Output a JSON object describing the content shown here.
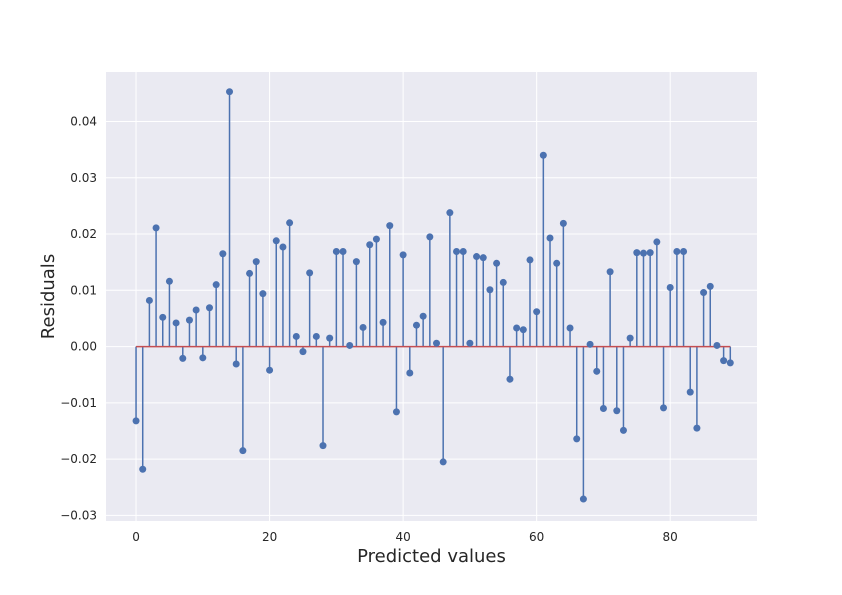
{
  "chart_data": {
    "type": "stem",
    "title": "",
    "xlabel": "Predicted values",
    "ylabel": "Residuals",
    "xlim": [
      -4.5,
      93
    ],
    "ylim": [
      -0.031,
      0.0488
    ],
    "xticks": [
      0,
      20,
      40,
      60,
      80
    ],
    "xtick_labels": [
      "0",
      "20",
      "40",
      "60",
      "80"
    ],
    "yticks": [
      -0.03,
      -0.02,
      -0.01,
      0.0,
      0.01,
      0.02,
      0.03,
      0.04
    ],
    "ytick_labels": [
      "−0.03",
      "−0.02",
      "−0.01",
      "0.00",
      "0.01",
      "0.02",
      "0.03",
      "0.04"
    ],
    "grid": true,
    "baseline": 0.0,
    "x": [
      0,
      1,
      2,
      3,
      4,
      5,
      6,
      7,
      8,
      9,
      10,
      11,
      12,
      13,
      14,
      15,
      16,
      17,
      18,
      19,
      20,
      21,
      22,
      23,
      24,
      25,
      26,
      27,
      28,
      29,
      30,
      31,
      32,
      33,
      34,
      35,
      36,
      37,
      38,
      39,
      40,
      41,
      42,
      43,
      44,
      45,
      46,
      47,
      48,
      49,
      50,
      51,
      52,
      53,
      54,
      55,
      56,
      57,
      58,
      59,
      60,
      61,
      62,
      63,
      64,
      65,
      66,
      67,
      68,
      69,
      70,
      71,
      72,
      73,
      74,
      75,
      76,
      77,
      78,
      79,
      80,
      81,
      82,
      83,
      84,
      85,
      86,
      87,
      88,
      89
    ],
    "values": [
      -0.0132,
      -0.0218,
      0.0082,
      0.0211,
      0.0052,
      0.0116,
      0.0042,
      -0.0021,
      0.0047,
      0.0065,
      -0.002,
      0.0069,
      0.011,
      0.0165,
      0.0453,
      -0.0031,
      -0.0185,
      0.013,
      0.0151,
      0.0094,
      -0.0042,
      0.0188,
      0.0177,
      0.022,
      0.0018,
      -0.0009,
      0.0131,
      0.0018,
      -0.0176,
      0.0015,
      0.0169,
      0.0169,
      0.0002,
      0.0151,
      0.0034,
      0.0181,
      0.0191,
      0.0043,
      0.0215,
      -0.0116,
      0.0163,
      -0.0047,
      0.0038,
      0.0054,
      0.0195,
      0.0006,
      -0.0205,
      0.0238,
      0.0169,
      0.0169,
      0.0006,
      0.016,
      0.0158,
      0.0101,
      0.0148,
      0.0114,
      -0.0058,
      0.0033,
      0.003,
      0.0154,
      0.0062,
      0.034,
      0.0193,
      0.0148,
      0.0219,
      0.0033,
      -0.0164,
      -0.0271,
      0.0004,
      -0.0044,
      -0.011,
      0.0133,
      -0.0114,
      -0.0149,
      0.0015,
      0.0167,
      0.0166,
      0.0167,
      0.0186,
      -0.0109,
      0.0105,
      0.0169,
      0.0169,
      -0.0081,
      -0.0145,
      0.0096,
      0.0107,
      0.0002,
      -0.0025,
      -0.0029
    ],
    "colors": {
      "stem": "#4c72b0",
      "marker": "#4c72b0",
      "baseline": "#c44e52",
      "background": "#eaeaf2",
      "grid": "#ffffff"
    }
  }
}
